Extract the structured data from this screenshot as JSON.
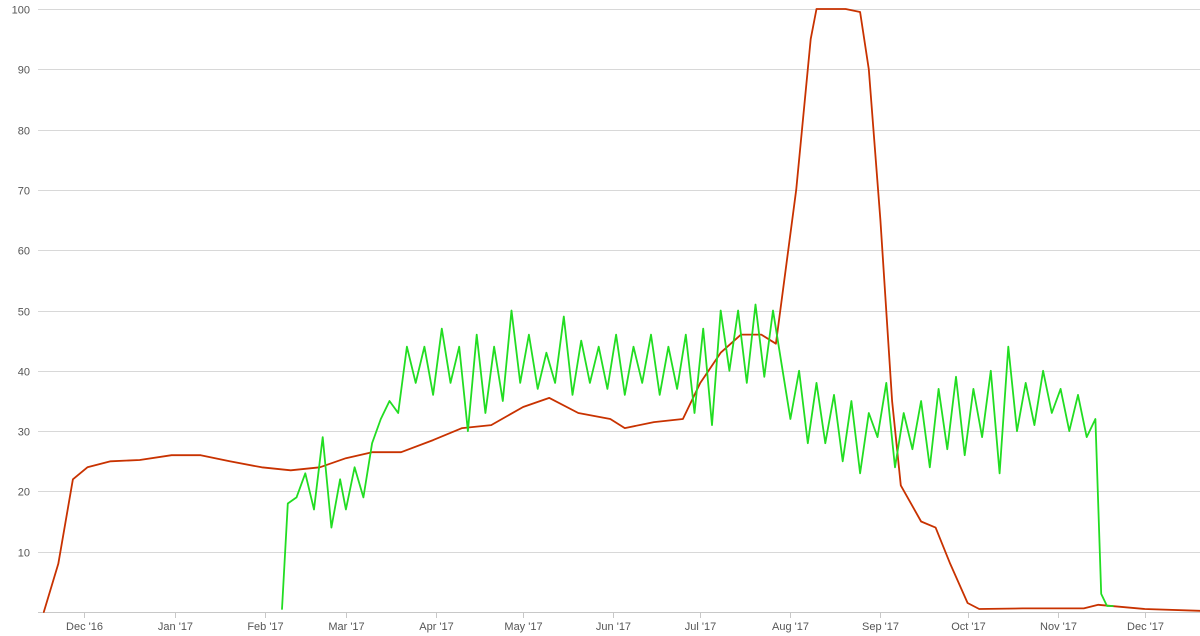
{
  "chart_data": {
    "type": "line",
    "title": "",
    "xlabel": "",
    "ylabel": "",
    "grid": true,
    "legend": "none",
    "y_axis": {
      "min": 0,
      "max": 100,
      "ticks": [
        10,
        20,
        30,
        40,
        50,
        60,
        70,
        80,
        90,
        100
      ]
    },
    "x_axis": {
      "min": "2016-11-15",
      "max": "2017-12-20",
      "ticks": [
        {
          "date": "2016-12-01",
          "label": "Dec '16"
        },
        {
          "date": "2017-01-01",
          "label": "Jan '17"
        },
        {
          "date": "2017-02-01",
          "label": "Feb '17"
        },
        {
          "date": "2017-03-01",
          "label": "Mar '17"
        },
        {
          "date": "2017-04-01",
          "label": "Apr '17"
        },
        {
          "date": "2017-05-01",
          "label": "May '17"
        },
        {
          "date": "2017-06-01",
          "label": "Jun '17"
        },
        {
          "date": "2017-07-01",
          "label": "Jul '17"
        },
        {
          "date": "2017-08-01",
          "label": "Aug '17"
        },
        {
          "date": "2017-09-01",
          "label": "Sep '17"
        },
        {
          "date": "2017-10-01",
          "label": "Oct '17"
        },
        {
          "date": "2017-11-01",
          "label": "Nov '17"
        },
        {
          "date": "2017-12-01",
          "label": "Dec '17"
        }
      ]
    },
    "series": [
      {
        "color": "#c83200",
        "points": [
          [
            "2016-11-17",
            0
          ],
          [
            "2016-11-22",
            8
          ],
          [
            "2016-11-27",
            22
          ],
          [
            "2016-12-02",
            24
          ],
          [
            "2016-12-10",
            25
          ],
          [
            "2016-12-20",
            25.2
          ],
          [
            "2016-12-31",
            26
          ],
          [
            "2017-01-10",
            26
          ],
          [
            "2017-01-20",
            25
          ],
          [
            "2017-01-31",
            24
          ],
          [
            "2017-02-10",
            23.5
          ],
          [
            "2017-02-20",
            24
          ],
          [
            "2017-03-01",
            25.5
          ],
          [
            "2017-03-10",
            26.5
          ],
          [
            "2017-03-20",
            26.5
          ],
          [
            "2017-03-31",
            28.5
          ],
          [
            "2017-04-10",
            30.5
          ],
          [
            "2017-04-20",
            31
          ],
          [
            "2017-05-01",
            34
          ],
          [
            "2017-05-10",
            35.5
          ],
          [
            "2017-05-20",
            33
          ],
          [
            "2017-05-31",
            32
          ],
          [
            "2017-06-05",
            30.5
          ],
          [
            "2017-06-15",
            31.5
          ],
          [
            "2017-06-25",
            32
          ],
          [
            "2017-07-01",
            38
          ],
          [
            "2017-07-08",
            43
          ],
          [
            "2017-07-15",
            46
          ],
          [
            "2017-07-22",
            46
          ],
          [
            "2017-07-27",
            44.5
          ],
          [
            "2017-08-03",
            70
          ],
          [
            "2017-08-08",
            95
          ],
          [
            "2017-08-10",
            100
          ],
          [
            "2017-08-20",
            100
          ],
          [
            "2017-08-25",
            99.5
          ],
          [
            "2017-08-28",
            90
          ],
          [
            "2017-09-01",
            65
          ],
          [
            "2017-09-05",
            35
          ],
          [
            "2017-09-08",
            21
          ],
          [
            "2017-09-15",
            15
          ],
          [
            "2017-09-20",
            14
          ],
          [
            "2017-09-25",
            8
          ],
          [
            "2017-10-01",
            1.5
          ],
          [
            "2017-10-05",
            0.5
          ],
          [
            "2017-10-20",
            0.6
          ],
          [
            "2017-11-10",
            0.6
          ],
          [
            "2017-11-15",
            1.2
          ],
          [
            "2017-12-01",
            0.5
          ],
          [
            "2017-12-20",
            0.2
          ]
        ]
      },
      {
        "color": "#22dd22",
        "points": [
          [
            "2017-02-07",
            0.5
          ],
          [
            "2017-02-09",
            18
          ],
          [
            "2017-02-12",
            19
          ],
          [
            "2017-02-15",
            23
          ],
          [
            "2017-02-18",
            17
          ],
          [
            "2017-02-21",
            29
          ],
          [
            "2017-02-24",
            14
          ],
          [
            "2017-02-27",
            22
          ],
          [
            "2017-03-01",
            17
          ],
          [
            "2017-03-04",
            24
          ],
          [
            "2017-03-07",
            19
          ],
          [
            "2017-03-10",
            28
          ],
          [
            "2017-03-13",
            32
          ],
          [
            "2017-03-16",
            35
          ],
          [
            "2017-03-19",
            33
          ],
          [
            "2017-03-22",
            44
          ],
          [
            "2017-03-25",
            38
          ],
          [
            "2017-03-28",
            44
          ],
          [
            "2017-03-31",
            36
          ],
          [
            "2017-04-03",
            47
          ],
          [
            "2017-04-06",
            38
          ],
          [
            "2017-04-09",
            44
          ],
          [
            "2017-04-12",
            30
          ],
          [
            "2017-04-15",
            46
          ],
          [
            "2017-04-18",
            33
          ],
          [
            "2017-04-21",
            44
          ],
          [
            "2017-04-24",
            35
          ],
          [
            "2017-04-27",
            50
          ],
          [
            "2017-04-30",
            38
          ],
          [
            "2017-05-03",
            46
          ],
          [
            "2017-05-06",
            37
          ],
          [
            "2017-05-09",
            43
          ],
          [
            "2017-05-12",
            38
          ],
          [
            "2017-05-15",
            49
          ],
          [
            "2017-05-18",
            36
          ],
          [
            "2017-05-21",
            45
          ],
          [
            "2017-05-24",
            38
          ],
          [
            "2017-05-27",
            44
          ],
          [
            "2017-05-30",
            37
          ],
          [
            "2017-06-02",
            46
          ],
          [
            "2017-06-05",
            36
          ],
          [
            "2017-06-08",
            44
          ],
          [
            "2017-06-11",
            38
          ],
          [
            "2017-06-14",
            46
          ],
          [
            "2017-06-17",
            36
          ],
          [
            "2017-06-20",
            44
          ],
          [
            "2017-06-23",
            37
          ],
          [
            "2017-06-26",
            46
          ],
          [
            "2017-06-29",
            33
          ],
          [
            "2017-07-02",
            47
          ],
          [
            "2017-07-05",
            31
          ],
          [
            "2017-07-08",
            50
          ],
          [
            "2017-07-11",
            40
          ],
          [
            "2017-07-14",
            50
          ],
          [
            "2017-07-17",
            38
          ],
          [
            "2017-07-20",
            51
          ],
          [
            "2017-07-23",
            39
          ],
          [
            "2017-07-26",
            50
          ],
          [
            "2017-07-29",
            41
          ],
          [
            "2017-08-01",
            32
          ],
          [
            "2017-08-04",
            40
          ],
          [
            "2017-08-07",
            28
          ],
          [
            "2017-08-10",
            38
          ],
          [
            "2017-08-13",
            28
          ],
          [
            "2017-08-16",
            36
          ],
          [
            "2017-08-19",
            25
          ],
          [
            "2017-08-22",
            35
          ],
          [
            "2017-08-25",
            23
          ],
          [
            "2017-08-28",
            33
          ],
          [
            "2017-08-31",
            29
          ],
          [
            "2017-09-03",
            38
          ],
          [
            "2017-09-06",
            24
          ],
          [
            "2017-09-09",
            33
          ],
          [
            "2017-09-12",
            27
          ],
          [
            "2017-09-15",
            35
          ],
          [
            "2017-09-18",
            24
          ],
          [
            "2017-09-21",
            37
          ],
          [
            "2017-09-24",
            27
          ],
          [
            "2017-09-27",
            39
          ],
          [
            "2017-09-30",
            26
          ],
          [
            "2017-10-03",
            37
          ],
          [
            "2017-10-06",
            29
          ],
          [
            "2017-10-09",
            40
          ],
          [
            "2017-10-12",
            23
          ],
          [
            "2017-10-15",
            44
          ],
          [
            "2017-10-18",
            30
          ],
          [
            "2017-10-21",
            38
          ],
          [
            "2017-10-24",
            31
          ],
          [
            "2017-10-27",
            40
          ],
          [
            "2017-10-30",
            33
          ],
          [
            "2017-11-02",
            37
          ],
          [
            "2017-11-05",
            30
          ],
          [
            "2017-11-08",
            36
          ],
          [
            "2017-11-11",
            29
          ],
          [
            "2017-11-14",
            32
          ],
          [
            "2017-11-16",
            3
          ],
          [
            "2017-11-18",
            1
          ],
          [
            "2017-11-20",
            1
          ]
        ]
      }
    ]
  }
}
